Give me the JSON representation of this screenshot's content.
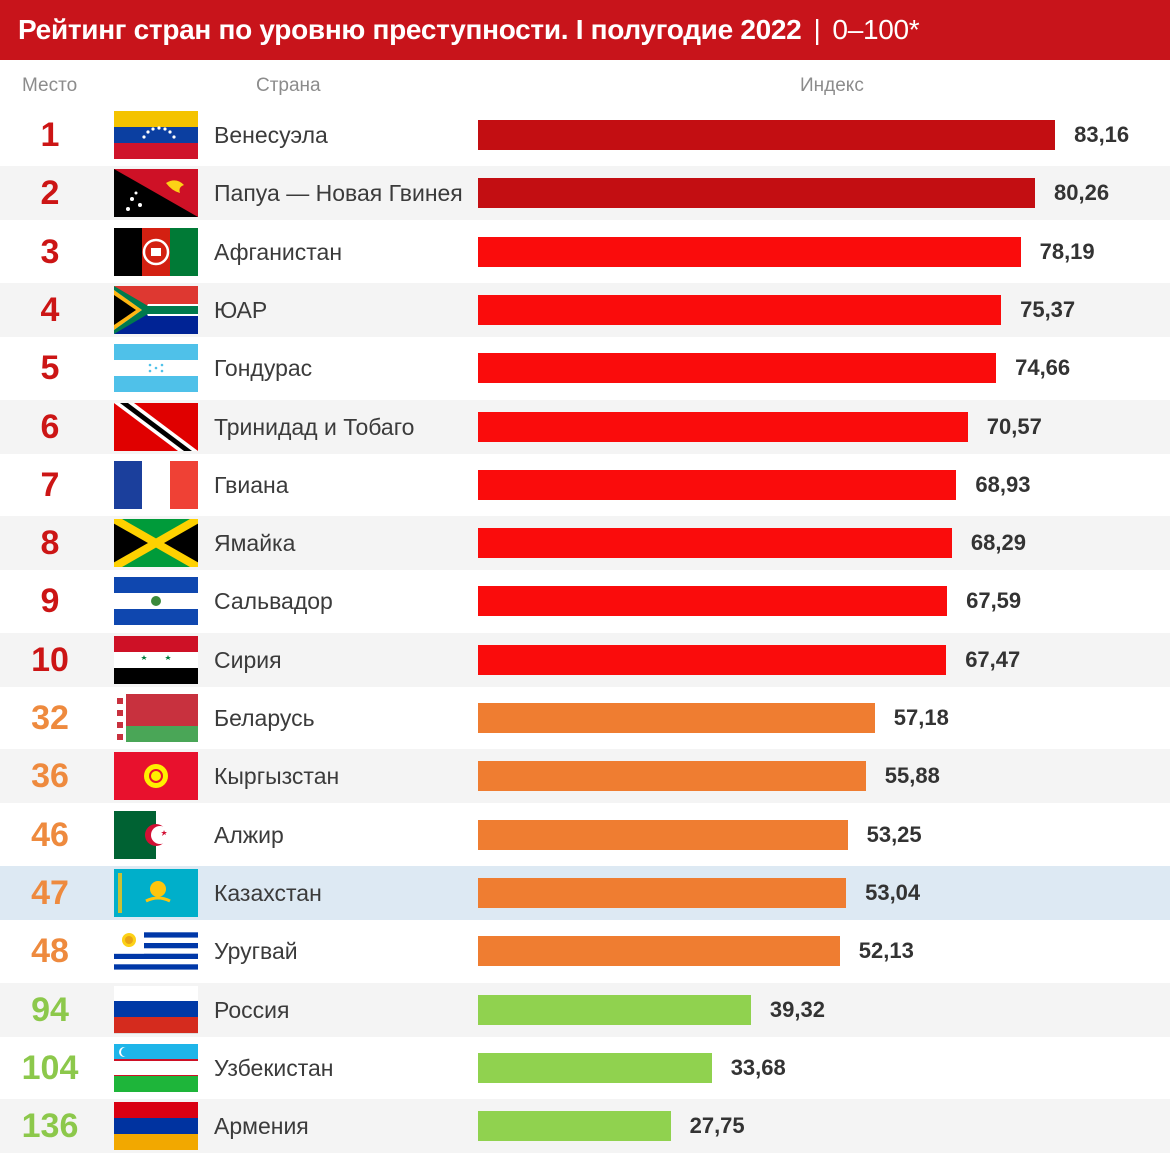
{
  "header": {
    "title": "Рейтинг стран по уровню преступности. I полугодие 2022",
    "separator": "|",
    "range": "0–100*"
  },
  "columns": {
    "place": "Место",
    "country": "Страна",
    "index": "Индекс"
  },
  "colors": {
    "title_bg": "#c8141b",
    "top_dark": "#c30e12",
    "top": "#fa0c0c",
    "mid": "#ef7d31",
    "low": "#90d24f",
    "rank_top": "#cc1515",
    "rank_mid": "#ee8a3e",
    "rank_low": "#8cc84b",
    "highlight_row": "#dde9f3"
  },
  "chart_data": {
    "type": "bar",
    "orientation": "horizontal",
    "title": "Рейтинг стран по уровню преступности. I полугодие 2022",
    "xlabel": "Индекс",
    "xlim": [
      0,
      100
    ],
    "grid": false,
    "categories": [
      "Венесуэла",
      "Папуа — Новая Гвинея",
      "Афганистан",
      "ЮАР",
      "Гондурас",
      "Тринидад и Тобаго",
      "Гвиана",
      "Ямайка",
      "Сальвадор",
      "Сирия",
      "Беларусь",
      "Кыргызстан",
      "Алжир",
      "Казахстан",
      "Уругвай",
      "Россия",
      "Узбекистан",
      "Армения"
    ],
    "ranks": [
      "1",
      "2",
      "3",
      "4",
      "5",
      "6",
      "7",
      "8",
      "9",
      "10",
      "32",
      "36",
      "46",
      "47",
      "48",
      "94",
      "104",
      "136"
    ],
    "values": [
      83.16,
      80.26,
      78.19,
      75.37,
      74.66,
      70.57,
      68.93,
      68.29,
      67.59,
      67.47,
      57.18,
      55.88,
      53.25,
      53.04,
      52.13,
      39.32,
      33.68,
      27.75
    ],
    "value_labels": [
      "83,16",
      "80,26",
      "78,19",
      "75,37",
      "74,66",
      "70,57",
      "68,93",
      "68,29",
      "67,59",
      "67,47",
      "57,18",
      "55,88",
      "53,25",
      "53,04",
      "52,13",
      "39,32",
      "33,68",
      "27,75"
    ],
    "groups": [
      "top_dark",
      "top_dark",
      "top",
      "top",
      "top",
      "top",
      "top",
      "top",
      "top",
      "top",
      "mid",
      "mid",
      "mid",
      "mid",
      "mid",
      "low",
      "low",
      "low"
    ],
    "flags": [
      "venezuela-flag",
      "papua-new-guinea-flag",
      "afghanistan-flag",
      "south-africa-flag",
      "honduras-flag",
      "trinidad-and-tobago-flag",
      "french-guiana-flag",
      "jamaica-flag",
      "el-salvador-flag",
      "syria-flag",
      "belarus-flag",
      "kyrgyzstan-flag",
      "algeria-flag",
      "kazakhstan-flag",
      "uruguay-flag",
      "russia-flag",
      "uzbekistan-flag",
      "armenia-flag"
    ],
    "highlight": "Казахстан"
  }
}
